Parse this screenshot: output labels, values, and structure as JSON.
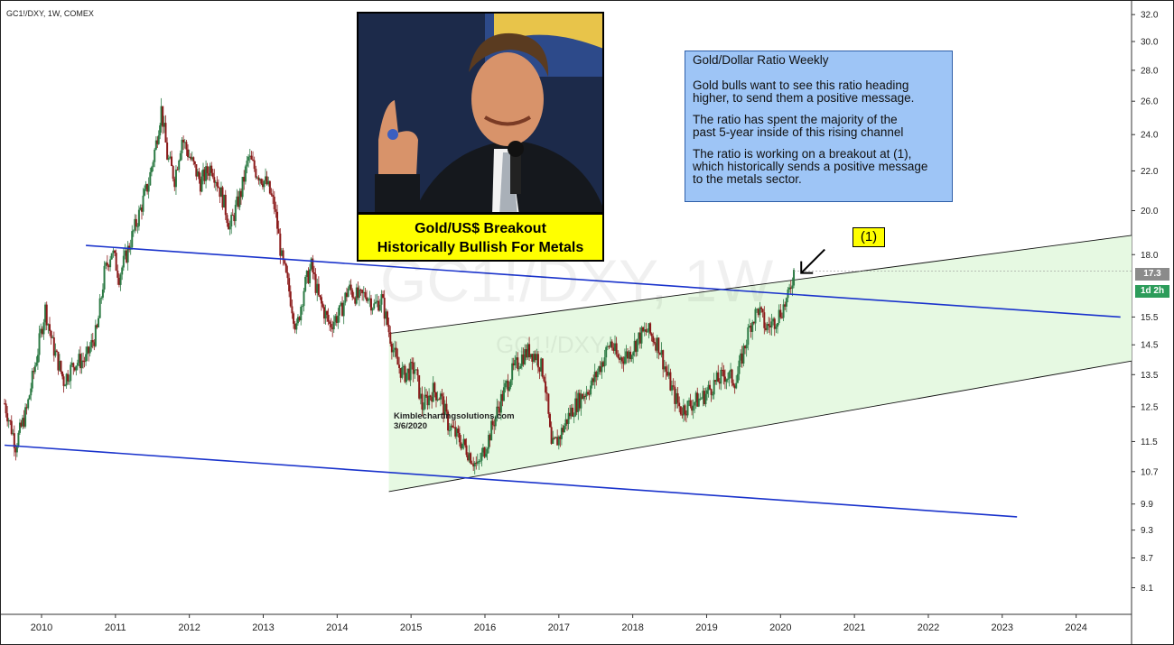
{
  "symbol": "GC1!/DXY, 1W, COMEX",
  "watermark": {
    "big": "GC1!/DXY, 1W",
    "small": "GC1!/DXY"
  },
  "caption": {
    "line1": "Gold/US$ Breakout",
    "line2": "Historically Bullish For Metals"
  },
  "infobox": {
    "title": "Gold/Dollar Ratio Weekly",
    "p1": "Gold bulls want to see this ratio heading\nhigher, to send them a positive message.",
    "p2": "The ratio has spent the majority of the\npast 5-year inside of this rising channel",
    "p3": "The ratio is working on a breakout at (1),\nwhich historically sends a positive message\nto the metals sector."
  },
  "annotation": {
    "label": "(1)"
  },
  "credit": {
    "site": "Kimblechartingsolutions.com",
    "date": "3/6/2020"
  },
  "price_tags": {
    "last": "17.3",
    "countdown": "1d 2h"
  },
  "colors": {
    "up": "#2c7a44",
    "down": "#8b1a1a",
    "trendline": "#1a33cc",
    "channel_fill": "#e6f9e2",
    "channel_line": "#111111",
    "infobox_bg": "#9ec5f6",
    "caption_bg": "#ffff00"
  },
  "chart_data": {
    "type": "candlestick",
    "scale": "log",
    "ylim": [
      7.6,
      32.5
    ],
    "xlim": [
      2009.45,
      2024.75
    ],
    "y_ticks": [
      "32.0",
      "30.0",
      "28.0",
      "26.0",
      "24.0",
      "22.0",
      "20.0",
      "18.0",
      "15.5",
      "14.5",
      "13.5",
      "12.5",
      "11.5",
      "10.7",
      "9.9",
      "9.3",
      "8.7",
      "8.1"
    ],
    "x_ticks": [
      "2010",
      "2011",
      "2012",
      "2013",
      "2014",
      "2015",
      "2016",
      "2017",
      "2018",
      "2019",
      "2020",
      "2021",
      "2022",
      "2023",
      "2024"
    ],
    "series": [
      {
        "points": [
          [
            2009.5,
            12.6
          ],
          [
            2009.65,
            11.4
          ],
          [
            2009.8,
            12.4
          ],
          [
            2009.95,
            14.3
          ],
          [
            2010.05,
            15.8
          ],
          [
            2010.15,
            14.5
          ],
          [
            2010.3,
            13.3
          ],
          [
            2010.45,
            13.9
          ],
          [
            2010.6,
            14.0
          ],
          [
            2010.75,
            15.0
          ],
          [
            2010.85,
            17.2
          ],
          [
            2010.95,
            18.2
          ],
          [
            2011.05,
            17.1
          ],
          [
            2011.15,
            18.0
          ],
          [
            2011.3,
            19.6
          ],
          [
            2011.45,
            21.4
          ],
          [
            2011.55,
            23.5
          ],
          [
            2011.62,
            25.5
          ],
          [
            2011.7,
            22.8
          ],
          [
            2011.8,
            21.6
          ],
          [
            2011.9,
            23.8
          ],
          [
            2012.0,
            22.8
          ],
          [
            2012.15,
            21.4
          ],
          [
            2012.3,
            22.3
          ],
          [
            2012.45,
            20.6
          ],
          [
            2012.55,
            19.2
          ],
          [
            2012.7,
            20.9
          ],
          [
            2012.8,
            22.7
          ],
          [
            2012.9,
            22.0
          ],
          [
            2013.05,
            21.3
          ],
          [
            2013.15,
            20.2
          ],
          [
            2013.25,
            17.8
          ],
          [
            2013.35,
            16.5
          ],
          [
            2013.45,
            15.0
          ],
          [
            2013.55,
            16.6
          ],
          [
            2013.65,
            17.5
          ],
          [
            2013.75,
            16.2
          ],
          [
            2013.9,
            15.2
          ],
          [
            2014.05,
            15.7
          ],
          [
            2014.15,
            16.6
          ],
          [
            2014.3,
            16.2
          ],
          [
            2014.4,
            16.4
          ],
          [
            2014.5,
            15.9
          ],
          [
            2014.6,
            16.2
          ],
          [
            2014.7,
            15.0
          ],
          [
            2014.8,
            13.9
          ],
          [
            2014.9,
            13.5
          ],
          [
            2015.05,
            13.7
          ],
          [
            2015.15,
            12.5
          ],
          [
            2015.3,
            13.0
          ],
          [
            2015.4,
            12.8
          ],
          [
            2015.5,
            12.0
          ],
          [
            2015.6,
            11.7
          ],
          [
            2015.75,
            11.3
          ],
          [
            2015.9,
            10.8
          ],
          [
            2016.05,
            11.6
          ],
          [
            2016.2,
            12.6
          ],
          [
            2016.35,
            13.5
          ],
          [
            2016.5,
            14.1
          ],
          [
            2016.6,
            14.3
          ],
          [
            2016.7,
            14.1
          ],
          [
            2016.8,
            13.5
          ],
          [
            2016.9,
            11.3
          ],
          [
            2017.0,
            11.6
          ],
          [
            2017.15,
            12.3
          ],
          [
            2017.3,
            12.8
          ],
          [
            2017.45,
            13.2
          ],
          [
            2017.6,
            14.0
          ],
          [
            2017.7,
            14.6
          ],
          [
            2017.8,
            14.0
          ],
          [
            2017.95,
            14.2
          ],
          [
            2018.1,
            14.8
          ],
          [
            2018.2,
            15.0
          ],
          [
            2018.35,
            14.5
          ],
          [
            2018.45,
            13.6
          ],
          [
            2018.55,
            12.9
          ],
          [
            2018.65,
            12.4
          ],
          [
            2018.8,
            12.6
          ],
          [
            2018.95,
            12.8
          ],
          [
            2019.1,
            13.2
          ],
          [
            2019.25,
            13.5
          ],
          [
            2019.4,
            13.3
          ],
          [
            2019.5,
            14.3
          ],
          [
            2019.6,
            15.3
          ],
          [
            2019.7,
            15.8
          ],
          [
            2019.8,
            15.1
          ],
          [
            2019.9,
            15.3
          ],
          [
            2020.0,
            15.7
          ],
          [
            2020.1,
            16.2
          ],
          [
            2020.18,
            17.3
          ]
        ]
      }
    ],
    "trendlines": [
      {
        "name": "upper falling line",
        "from": [
          2010.6,
          18.4
        ],
        "to": [
          2024.6,
          15.5
        ]
      },
      {
        "name": "lower falling line",
        "from": [
          2009.5,
          11.4
        ],
        "to": [
          2023.2,
          9.6
        ]
      },
      {
        "name": "rising channel top",
        "from": [
          2014.7,
          14.9
        ],
        "to": [
          2024.75,
          18.85
        ]
      },
      {
        "name": "rising channel bottom",
        "from": [
          2014.7,
          10.2
        ],
        "to": [
          2024.75,
          13.95
        ]
      }
    ],
    "last_price": 17.3
  }
}
